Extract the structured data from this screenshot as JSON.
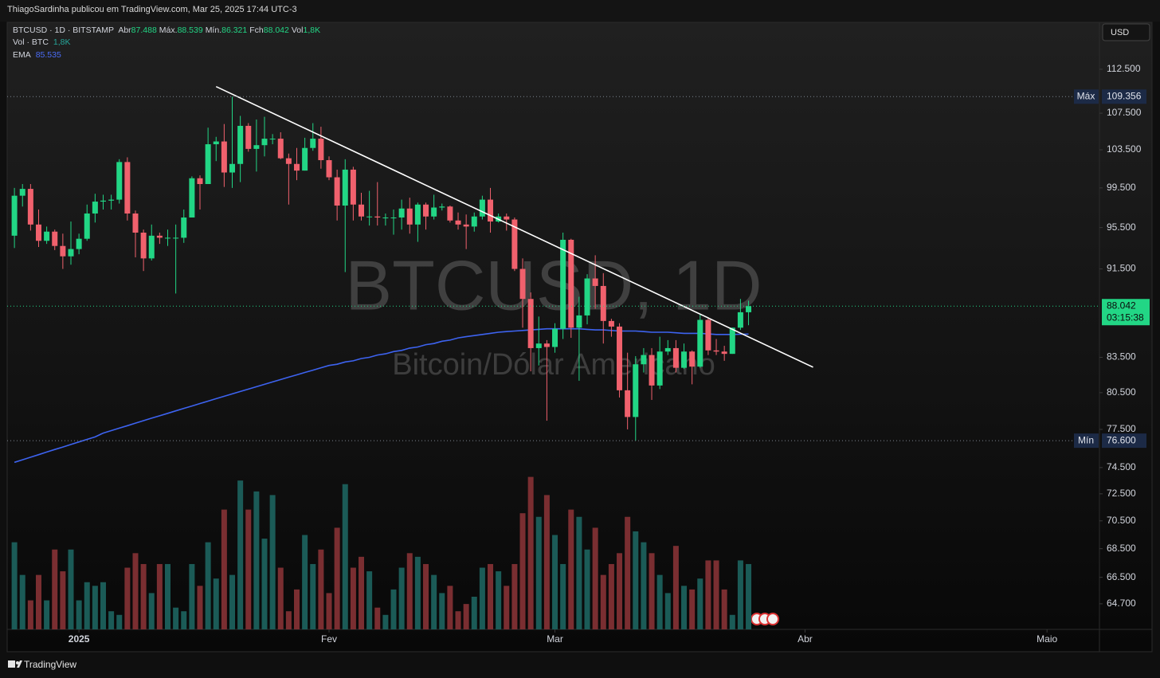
{
  "header": {
    "text": "ThiagoSardinha publicou em TradingView.com, Mar 25, 2025 17:44 UTC-3"
  },
  "toolbar": {
    "currency": "USD"
  },
  "footer": {
    "brand": "TradingView"
  },
  "chart_data": {
    "type": "candlestick",
    "legend": {
      "symbol": "BTCUSD · 1D · BITSTAMP",
      "fields": [
        {
          "key": "Abr",
          "value": "87.488"
        },
        {
          "key": "Máx.",
          "value": "88.539"
        },
        {
          "key": "Mín.",
          "value": "86.321"
        },
        {
          "key": "Fch",
          "value": "88.042"
        },
        {
          "key": "Vol",
          "value": "1,8K"
        }
      ],
      "volume": {
        "name": "Vol · BTC",
        "value": "1,8K"
      },
      "ema_value": "85.535"
    },
    "watermark": {
      "title": "BTCUSD, 1D",
      "subtitle": "Bitcoin/Dólar Americano"
    },
    "log_scale": true,
    "grid": false,
    "up_color": "#22d685",
    "down_color": "#f0616d",
    "volume_up_color": "#1b5b57",
    "volume_down_color": "#7a2e31",
    "x": [
      -8,
      -7,
      -6,
      -5,
      -4,
      -3,
      -2,
      -1,
      0,
      1,
      2,
      3,
      4,
      5,
      6,
      7,
      8,
      9,
      10,
      11,
      12,
      13,
      14,
      15,
      16,
      17,
      18,
      19,
      20,
      21,
      22,
      23,
      24,
      25,
      26,
      27,
      28,
      29,
      30,
      31,
      32,
      33,
      34,
      35,
      36,
      37,
      38,
      39,
      40,
      41,
      42,
      43,
      44,
      45,
      46,
      47,
      48,
      49,
      50,
      51,
      52,
      53,
      54,
      55,
      56,
      57,
      58,
      59,
      60,
      61,
      62,
      63,
      64,
      65,
      66,
      67,
      68,
      69,
      70,
      71,
      72,
      73,
      74,
      75,
      76,
      77,
      78,
      79,
      80,
      81,
      82,
      83
    ],
    "open": [
      94700,
      98700,
      99400,
      95800,
      94200,
      95100,
      93700,
      92700,
      93400,
      94400,
      96900,
      98100,
      98200,
      98300,
      102200,
      96900,
      95000,
      92500,
      94700,
      94500,
      94500,
      94500,
      96500,
      100500,
      99900,
      104100,
      104400,
      101100,
      102000,
      106100,
      103600,
      104000,
      104700,
      104700,
      102600,
      102000,
      101300,
      103700,
      104700,
      102400,
      100600,
      97700,
      101400,
      97800,
      96600,
      96600,
      96500,
      96500,
      96500,
      97400,
      95800,
      97800,
      96600,
      97500,
      97600,
      96200,
      95800,
      95600,
      96600,
      98300,
      96100,
      96600,
      96300,
      91500,
      88700,
      84300,
      84700,
      84400,
      86000,
      94300,
      86100,
      87200,
      90600,
      89900,
      86700,
      86200,
      80700,
      78500,
      82900,
      83700,
      81100,
      84000,
      84300,
      82600,
      84000,
      82700,
      86800,
      84100,
      84000,
      83800,
      86100,
      87488
    ],
    "high": [
      99500,
      99900,
      99900,
      97300,
      95600,
      95300,
      94900,
      96100,
      94900,
      97800,
      98900,
      98800,
      98800,
      102500,
      102700,
      97200,
      95300,
      95800,
      95000,
      95300,
      95800,
      97300,
      100700,
      100800,
      105900,
      104900,
      106300,
      109356,
      107200,
      106400,
      106800,
      107100,
      105200,
      105400,
      103100,
      103700,
      104800,
      106400,
      106000,
      102800,
      101400,
      102500,
      101700,
      99000,
      99200,
      100100,
      96900,
      97300,
      98300,
      98500,
      98000,
      98000,
      98800,
      97900,
      97700,
      97000,
      96800,
      97000,
      98700,
      99500,
      96900,
      96900,
      96500,
      92500,
      89300,
      87100,
      85000,
      86500,
      95000,
      94400,
      88900,
      91000,
      92800,
      91100,
      86900,
      86500,
      83900,
      83600,
      84300,
      84300,
      85300,
      85000,
      85000,
      84700,
      84100,
      87300,
      87000,
      85100,
      84500,
      86100,
      88700,
      88539
    ],
    "low": [
      93500,
      97600,
      95200,
      93600,
      93900,
      93300,
      91500,
      91900,
      92900,
      94200,
      96000,
      97300,
      97300,
      97900,
      96200,
      92600,
      91300,
      92300,
      93900,
      93700,
      89200,
      94000,
      96500,
      97300,
      99900,
      102300,
      99600,
      99500,
      100100,
      103300,
      101200,
      102800,
      104100,
      102500,
      97800,
      100300,
      101300,
      103400,
      101500,
      100300,
      96200,
      91200,
      96200,
      96200,
      95700,
      95700,
      95700,
      94800,
      95300,
      94900,
      94100,
      95300,
      96300,
      97200,
      96000,
      95300,
      93400,
      95100,
      96300,
      95000,
      96000,
      95200,
      91300,
      86100,
      82300,
      82800,
      78200,
      83900,
      85100,
      85200,
      81500,
      86400,
      87800,
      84700,
      85300,
      80100,
      77500,
      76600,
      82200,
      79900,
      80800,
      83700,
      82200,
      82500,
      81200,
      82600,
      83700,
      83700,
      83200,
      83800,
      85900,
      86321
    ],
    "close": [
      98700,
      99400,
      95800,
      94200,
      95100,
      93700,
      92700,
      93400,
      94400,
      96900,
      98100,
      98200,
      98300,
      102200,
      96900,
      95000,
      92500,
      94700,
      94500,
      94500,
      94500,
      96500,
      100500,
      99900,
      104100,
      104400,
      101100,
      102000,
      106100,
      103600,
      104000,
      104700,
      104700,
      102600,
      102000,
      101300,
      103700,
      104700,
      102400,
      100600,
      97700,
      101400,
      97800,
      96600,
      96600,
      96500,
      96500,
      96500,
      97400,
      95800,
      97800,
      96600,
      97500,
      97600,
      96200,
      95800,
      95600,
      96600,
      98300,
      96100,
      96600,
      96300,
      91500,
      88700,
      84300,
      84700,
      84400,
      86000,
      94300,
      86100,
      87200,
      90600,
      89900,
      86700,
      86200,
      80700,
      78500,
      82900,
      83700,
      81100,
      84000,
      84300,
      82600,
      84000,
      82700,
      86800,
      84100,
      84000,
      83800,
      86100,
      87488,
      88042
    ],
    "volume": [
      2400,
      1500,
      800,
      1500,
      800,
      2200,
      1600,
      2200,
      800,
      1300,
      1200,
      1300,
      500,
      400,
      1700,
      2100,
      1800,
      1000,
      1800,
      1800,
      600,
      500,
      1800,
      1200,
      2400,
      1400,
      3300,
      1500,
      4100,
      3300,
      3800,
      2500,
      3700,
      1700,
      500,
      1100,
      2600,
      1800,
      2200,
      1000,
      2800,
      4000,
      1700,
      2000,
      1600,
      600,
      400,
      1100,
      1700,
      2100,
      2000,
      1800,
      1500,
      1000,
      1200,
      500,
      700,
      900,
      1700,
      1800,
      1600,
      1200,
      1800,
      3200,
      4200,
      3100,
      3700,
      2600,
      1800,
      3300,
      3100,
      2200,
      2800,
      1500,
      1800,
      2100,
      3100,
      2700,
      2400,
      2100,
      1500,
      1000,
      2300,
      1200,
      1100,
      1400,
      1900,
      1900,
      1100,
      400,
      1900,
      1800
    ],
    "volume_lim": [
      0,
      7000
    ],
    "ema": {
      "name": "EMA",
      "color": "#3d63f0",
      "values": [
        74900,
        75100,
        75300,
        75500,
        75700,
        75900,
        76100,
        76300,
        76500,
        76700,
        76900,
        77200,
        77400,
        77600,
        77800,
        78000,
        78200,
        78400,
        78600,
        78800,
        79000,
        79200,
        79400,
        79600,
        79800,
        80000,
        80200,
        80400,
        80600,
        80800,
        81000,
        81200,
        81400,
        81600,
        81800,
        82000,
        82200,
        82400,
        82600,
        82800,
        82900,
        83100,
        83200,
        83400,
        83500,
        83700,
        83800,
        84000,
        84100,
        84300,
        84400,
        84600,
        84700,
        84900,
        85000,
        85200,
        85300,
        85400,
        85500,
        85600,
        85700,
        85750,
        85800,
        85850,
        85900,
        85950,
        86000,
        86000,
        86000,
        86000,
        86000,
        85950,
        85900,
        85900,
        85850,
        85800,
        85800,
        85800,
        85750,
        85700,
        85700,
        85700,
        85650,
        85600,
        85600,
        85600,
        85550,
        85500,
        85500,
        85500,
        85520,
        85535
      ]
    },
    "trendline": {
      "color": "#ffffff",
      "x": [
        17,
        91
      ],
      "y": [
        110500,
        82650
      ]
    },
    "price_markers": [
      {
        "name": "Máx",
        "value": 109356,
        "label": "109.356"
      },
      {
        "name": "Mín",
        "value": 76600,
        "label": "76.600"
      }
    ],
    "last_price": {
      "value": 88042,
      "label": "88.042",
      "countdown": "03:15:38",
      "color": "#22d685"
    },
    "xlim": [
      -8.9,
      126.5
    ],
    "xticks": [
      {
        "value": 0,
        "label": "2025"
      },
      {
        "value": 31,
        "label": "Fev"
      },
      {
        "value": 59,
        "label": "Mar"
      },
      {
        "value": 90,
        "label": "Abr"
      },
      {
        "value": 120,
        "label": "Maio"
      }
    ],
    "ylim": [
      63010,
      118100
    ],
    "yticks": [
      {
        "value": 112500,
        "label": "112.500"
      },
      {
        "value": 107500,
        "label": "107.500"
      },
      {
        "value": 103500,
        "label": "103.500"
      },
      {
        "value": 99500,
        "label": "99.500"
      },
      {
        "value": 95500,
        "label": "95.500"
      },
      {
        "value": 91500,
        "label": "91.500"
      },
      {
        "value": 83500,
        "label": "83.500"
      },
      {
        "value": 80500,
        "label": "80.500"
      },
      {
        "value": 77500,
        "label": "77.500"
      },
      {
        "value": 74500,
        "label": "74.500"
      },
      {
        "value": 72500,
        "label": "72.500"
      },
      {
        "value": 70500,
        "label": "70.500"
      },
      {
        "value": 68500,
        "label": "68.500"
      },
      {
        "value": 66500,
        "label": "66.500"
      },
      {
        "value": 64700,
        "label": "64.700"
      }
    ]
  }
}
